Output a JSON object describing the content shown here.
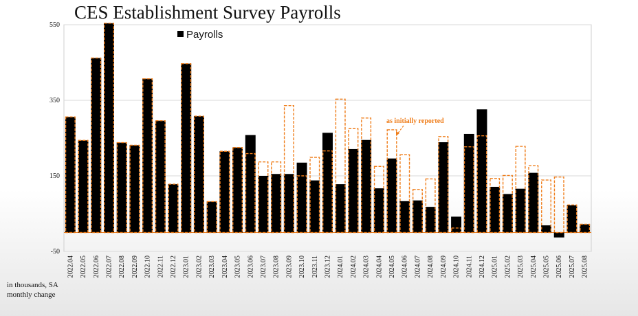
{
  "chart_data": {
    "type": "bar",
    "title": "CES Establishment Survey Payrolls",
    "ylim": [
      -50,
      550
    ],
    "yticks": [
      "550",
      "350",
      "150",
      "-50"
    ],
    "legend": {
      "label": "Payrolls",
      "placement": "top-left"
    },
    "annotation": "as initially reported",
    "footnote": "in thousands, SA monthly change",
    "colors": {
      "payrolls": "#000000",
      "initial": "#ef7d1a",
      "grid": "#d9d9d9"
    },
    "categories": [
      "2022.04",
      "2022.05",
      "2022.06",
      "2022.07",
      "2022.08",
      "2022.09",
      "2022.10",
      "2022.11",
      "2022.12",
      "2023.01",
      "2023.02",
      "2023.03",
      "2023.04",
      "2023.05",
      "2023.06",
      "2023.07",
      "2023.08",
      "2023.09",
      "2023.10",
      "2023.11",
      "2023.12",
      "2024.01",
      "2024.02",
      "2024.03",
      "2024.04",
      "2024.05",
      "2024.06",
      "2024.07",
      "2024.08",
      "2024.09",
      "2024.10",
      "2024.11",
      "2024.12",
      "2025.01",
      "2025.02",
      "2025.03",
      "2025.04",
      "2025.05",
      "2025.06",
      "2025.07",
      "2025.08"
    ],
    "series": [
      {
        "name": "Payrolls",
        "style": "filled",
        "values": [
          306,
          244,
          462,
          554,
          238,
          231,
          407,
          296,
          128,
          447,
          308,
          82,
          215,
          225,
          258,
          150,
          155,
          155,
          185,
          138,
          264,
          128,
          221,
          245,
          117,
          196,
          83,
          85,
          68,
          239,
          42,
          261,
          326,
          121,
          102,
          116,
          158,
          19,
          -13,
          72,
          22
        ]
      },
      {
        "name": "as initially reported",
        "style": "dashed-outline",
        "values": [
          306,
          244,
          462,
          554,
          238,
          231,
          407,
          296,
          128,
          447,
          308,
          82,
          215,
          225,
          209,
          187,
          187,
          336,
          150,
          199,
          216,
          353,
          275,
          303,
          175,
          272,
          206,
          114,
          142,
          254,
          12,
          227,
          256,
          143,
          151,
          228,
          177,
          139,
          147,
          73,
          22
        ]
      }
    ]
  }
}
